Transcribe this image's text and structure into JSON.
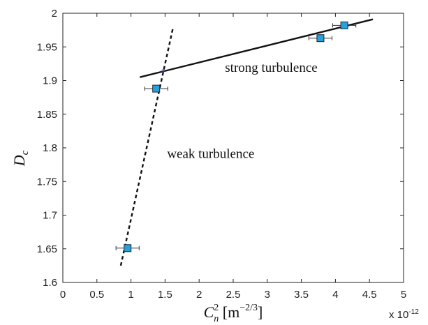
{
  "chart_data": {
    "type": "scatter",
    "xlabel": {
      "base": "C",
      "sub": "n",
      "sup": "2",
      "unit_open": " [m",
      "unit_exp": "−2/3",
      "unit_close": "]"
    },
    "ylabel": {
      "base": "D",
      "sub": "c"
    },
    "x_multiplier_label": "x 10",
    "x_multiplier_exp": "-12",
    "xlim": [
      0,
      5
    ],
    "ylim": [
      1.6,
      2.0
    ],
    "xticks": [
      0,
      0.5,
      1,
      1.5,
      2,
      2.5,
      3,
      3.5,
      4,
      4.5,
      5
    ],
    "xtick_labels": [
      "0",
      "0.5",
      "1",
      "1.5",
      "2",
      "2.5",
      "3",
      "3.5",
      "4",
      "4.5",
      "5"
    ],
    "yticks": [
      1.6,
      1.65,
      1.7,
      1.75,
      1.8,
      1.85,
      1.9,
      1.95,
      2.0
    ],
    "ytick_labels": [
      "1.6",
      "1.65",
      "1.7",
      "1.75",
      "1.8",
      "1.85",
      "1.9",
      "1.95",
      "2"
    ],
    "grid": false,
    "points": [
      {
        "x": 0.95,
        "y": 1.651,
        "xerr": 0.17
      },
      {
        "x": 1.37,
        "y": 1.888,
        "xerr": 0.17
      },
      {
        "x": 3.78,
        "y": 1.963,
        "xerr": 0.17
      },
      {
        "x": 4.13,
        "y": 1.982,
        "xerr": 0.17
      }
    ],
    "fits": [
      {
        "label": "weak turbulence",
        "style": "dashed",
        "x": [
          0.85,
          1.62
        ],
        "y": [
          1.625,
          1.98
        ]
      },
      {
        "label": "strong turbulence",
        "style": "solid",
        "x": [
          1.13,
          4.55
        ],
        "y": [
          1.905,
          1.991
        ]
      }
    ],
    "intersection": {
      "x": 1.47,
      "y": 1.914
    },
    "annotations": [
      {
        "text": "strong turbulence",
        "x": 2.38,
        "y": 1.913
      },
      {
        "text": "weak turbulence",
        "x": 1.53,
        "y": 1.785
      }
    ],
    "colors": {
      "marker_fill": "#2a9fd8",
      "marker_edge": "#0f2a3f",
      "line": "#111111",
      "axis": "#222222",
      "intersection": "#3a2fb8"
    }
  }
}
